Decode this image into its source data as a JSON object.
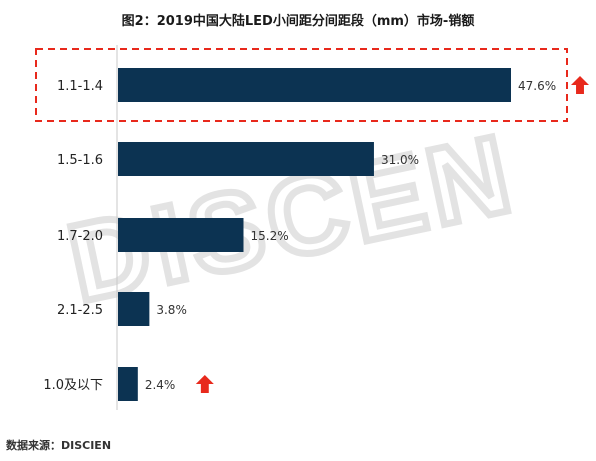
{
  "watermark": "DISCEN",
  "source": "数据来源：DISCIEN",
  "colors": {
    "bar": "#0c3352",
    "highlight": "#e8291c",
    "label": "#333333",
    "axis": "#c8c8c8"
  },
  "chart_data": {
    "type": "bar",
    "orientation": "horizontal",
    "title": "图2：2019中国大陆LED小间距分间距段（mm）市场-销额",
    "categories": [
      "1.1-1.4",
      "1.5-1.6",
      "1.7-2.0",
      "2.1-2.5",
      "1.0及以下"
    ],
    "values": [
      47.6,
      31.0,
      15.2,
      3.8,
      2.4
    ],
    "value_labels": [
      "47.6%",
      "31.0%",
      "15.2%",
      "3.8%",
      "2.4%"
    ],
    "unit": "%",
    "xlim": [
      0,
      50
    ],
    "grid": false,
    "highlighted_category": "1.1-1.4",
    "up_arrow_categories": [
      "1.1-1.4",
      "1.0及以下"
    ]
  }
}
